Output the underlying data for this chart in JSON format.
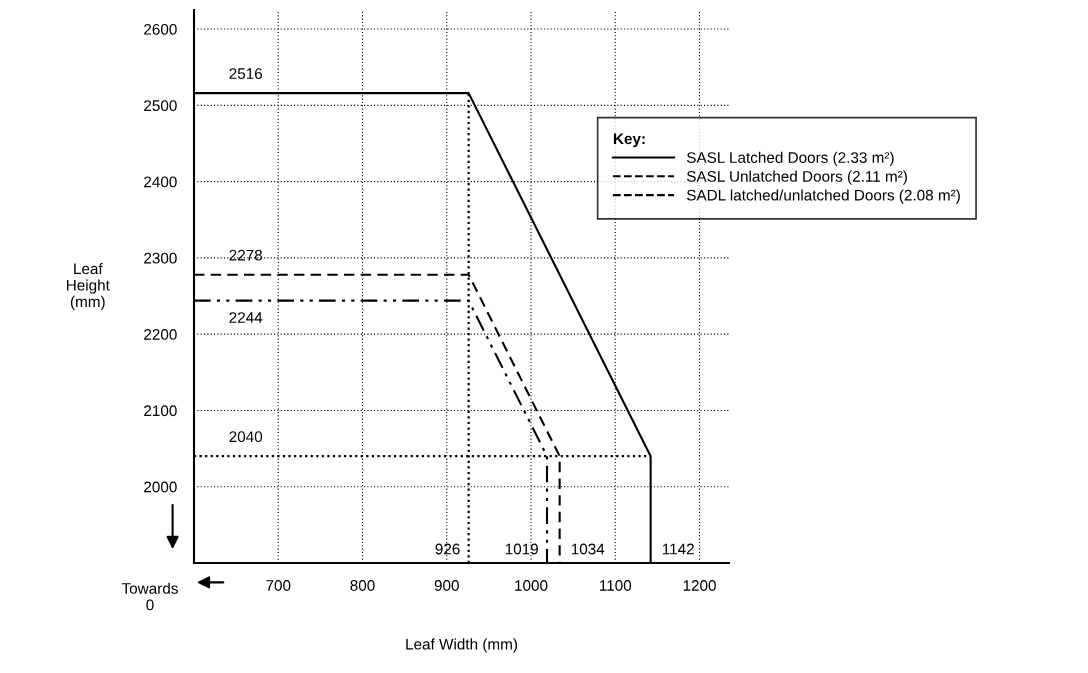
{
  "chart_data": {
    "type": "line",
    "xlabel": "Leaf Width (mm)",
    "ylabel": "Leaf\nHeight\n(mm)",
    "legend_title": "Key:",
    "xlim": [
      600,
      1235
    ],
    "xticks": [
      700,
      800,
      900,
      1000,
      1100,
      1200
    ],
    "ylim": [
      1900,
      2625
    ],
    "yticks": [
      2000,
      2100,
      2200,
      2300,
      2400,
      2500,
      2600
    ],
    "grid": true,
    "legend": "top right",
    "marker": "none",
    "series": [
      {
        "name": "SASL Latched Doors (2.33 m²)",
        "color": "#000000",
        "line_style": "solid",
        "x": [
          600,
          926,
          1142,
          1142
        ],
        "values": [
          2516,
          2516,
          2040,
          1900
        ]
      },
      {
        "name": "SASL Unlatched Doors (2.11 m²)",
        "color": "#000000",
        "line_style": "dashed",
        "x": [
          600,
          926,
          1034,
          1034
        ],
        "values": [
          2278,
          2278,
          2040,
          1900
        ]
      },
      {
        "name": "SADL latched/unlatched Doors (2.08 m²)",
        "color": "#000000",
        "line_style": "dashdotdot",
        "x": [
          600,
          926,
          1019,
          1019
        ],
        "values": [
          2244,
          2244,
          2040,
          1900
        ]
      },
      {
        "color": "#000000",
        "line_style": "dotted",
        "x": [
          926,
          926
        ],
        "values": [
          1900,
          2516
        ]
      },
      {
        "color": "#000000",
        "line_style": "dotted",
        "x": [
          600,
          1142
        ],
        "values": [
          2040,
          2040
        ]
      }
    ],
    "annotations": [
      {
        "text": "2516",
        "x": 600,
        "y": 2516
      },
      {
        "text": "2278",
        "x": 600,
        "y": 2278
      },
      {
        "text": "2244",
        "x": 600,
        "y": 2244
      },
      {
        "text": "2040",
        "x": 600,
        "y": 2040
      },
      {
        "text": "926",
        "x": 926,
        "y": 1900
      },
      {
        "text": "1019",
        "x": 1019,
        "y": 1900
      },
      {
        "text": "1034",
        "x": 1034,
        "y": 1900
      },
      {
        "text": "1142",
        "x": 1142,
        "y": 1900
      },
      "Towards\n0"
    ]
  }
}
